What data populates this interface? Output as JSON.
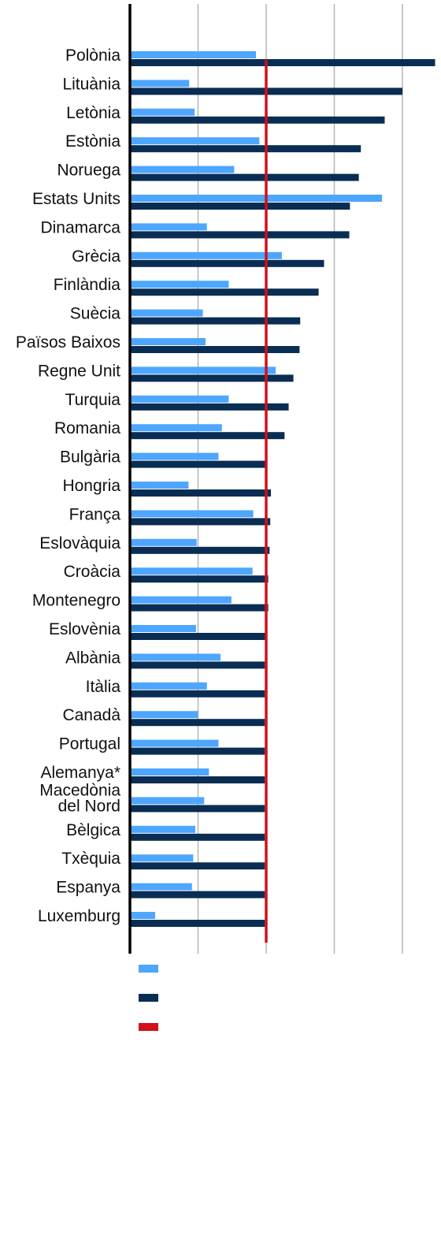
{
  "chart_data": {
    "type": "bar",
    "orientation": "horizontal",
    "categories": [
      "Polònia",
      "Lituània",
      "Letònia",
      "Estònia",
      "Noruega",
      "Estats Units",
      "Dinamarca",
      "Grècia",
      "Finlàndia",
      "Suècia",
      "Països Baixos",
      "Regne Unit",
      "Turquia",
      "Romania",
      "Bulgària",
      "Hongria",
      "França",
      "Eslovàquia",
      "Croàcia",
      "Montenegro",
      "Eslovènia",
      "Albània",
      "Itàlia",
      "Canadà",
      "Portugal",
      "Alemanya*",
      "Macedònia del Nord",
      "Bèlgica",
      "Txèquia",
      "Espanya",
      "Luxemburg"
    ],
    "series": [
      {
        "color": "#4da6ff",
        "values": [
          1.85,
          0.87,
          0.95,
          1.9,
          1.53,
          3.7,
          1.13,
          2.23,
          1.45,
          1.07,
          1.11,
          2.14,
          1.45,
          1.35,
          1.3,
          0.86,
          1.81,
          0.98,
          1.8,
          1.49,
          0.97,
          1.33,
          1.13,
          1.0,
          1.3,
          1.16,
          1.09,
          0.96,
          0.93,
          0.91,
          0.37
        ]
      },
      {
        "color": "#0a2d53",
        "values": [
          4.48,
          4.0,
          3.74,
          3.39,
          3.36,
          3.23,
          3.22,
          2.85,
          2.77,
          2.5,
          2.49,
          2.4,
          2.33,
          2.27,
          2.0,
          2.07,
          2.06,
          2.05,
          2.03,
          2.03,
          2.0,
          1.98,
          1.98,
          1.98,
          1.98,
          1.98,
          1.98,
          1.98,
          1.98,
          1.98,
          1.98
        ]
      }
    ],
    "reference_line": {
      "value": 2.0,
      "color": "#d0101b"
    },
    "xlim": [
      0,
      4.5
    ],
    "gridlines": [
      1,
      2,
      3,
      4
    ],
    "grid": true,
    "legend": "bottom-left"
  }
}
